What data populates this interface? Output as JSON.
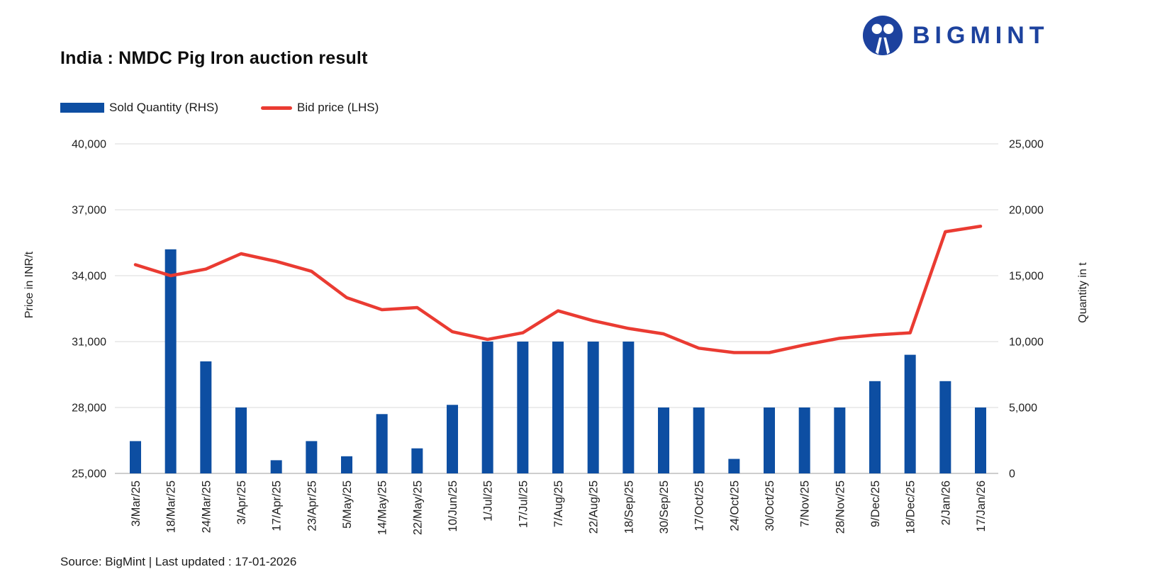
{
  "header": {
    "title": "India : NMDC Pig Iron auction result",
    "logo_text": "BIGMINT"
  },
  "legend": [
    {
      "label": "Sold Quantity (RHS)",
      "marker": "bar-swatch",
      "color": "#0d4ea2"
    },
    {
      "label": "Bid price (LHS)",
      "marker": "line-swatch",
      "color": "#ea3b32"
    }
  ],
  "footer": {
    "source_text": "Source: BigMint | Last updated : 17-01-2026"
  },
  "chart_data": {
    "type": "bar",
    "subtype": "combo-bar-line-dual-axis",
    "title": "India : NMDC Pig Iron auction result",
    "grid": "horizontal-on",
    "legend_position": "top-left",
    "categories": [
      "3/Mar/25",
      "18/Mar/25",
      "24/Mar/25",
      "3/Apr/25",
      "17/Apr/25",
      "23/Apr/25",
      "5/May/25",
      "14/May/25",
      "22/May/25",
      "10/Jun/25",
      "1/Jul/25",
      "17/Jul/25",
      "7/Aug/25",
      "22/Aug/25",
      "18/Sep/25",
      "30/Sep/25",
      "17/Oct/25",
      "24/Oct/25",
      "30/Oct/25",
      "7/Nov/25",
      "28/Nov/25",
      "9/Dec/25",
      "18/Dec/25",
      "2/Jan/26",
      "17/Jan/26"
    ],
    "series": [
      {
        "name": "Sold Quantity (RHS)",
        "type": "bar",
        "axis": "right",
        "color": "#0d4ea2",
        "values": [
          2450,
          17000,
          8500,
          5000,
          1000,
          2450,
          1300,
          4500,
          1900,
          5200,
          10000,
          10000,
          10000,
          10000,
          10000,
          5000,
          5000,
          1100,
          5000,
          5000,
          5000,
          7000,
          9000,
          7000,
          5000
        ]
      },
      {
        "name": "Bid price (LHS)",
        "type": "line",
        "axis": "left",
        "color": "#ea3b32",
        "values": [
          34500,
          34000,
          34300,
          35000,
          34650,
          34200,
          33000,
          32450,
          32550,
          31450,
          31100,
          31400,
          32400,
          31950,
          31600,
          31350,
          30700,
          30500,
          30500,
          30850,
          31150,
          31300,
          31400,
          36000,
          36250
        ]
      }
    ],
    "left_axis": {
      "title": "Price in INR/t",
      "min": 25000,
      "max": 40000,
      "ticks": [
        "40,000",
        "37,000",
        "34,000",
        "31,000",
        "28,000",
        "25,000"
      ]
    },
    "right_axis": {
      "title": "Quantity in t",
      "min": 0,
      "max": 25000,
      "ticks": [
        "25,000",
        "20,000",
        "15,000",
        "10,000",
        "5,000",
        "0"
      ]
    }
  }
}
